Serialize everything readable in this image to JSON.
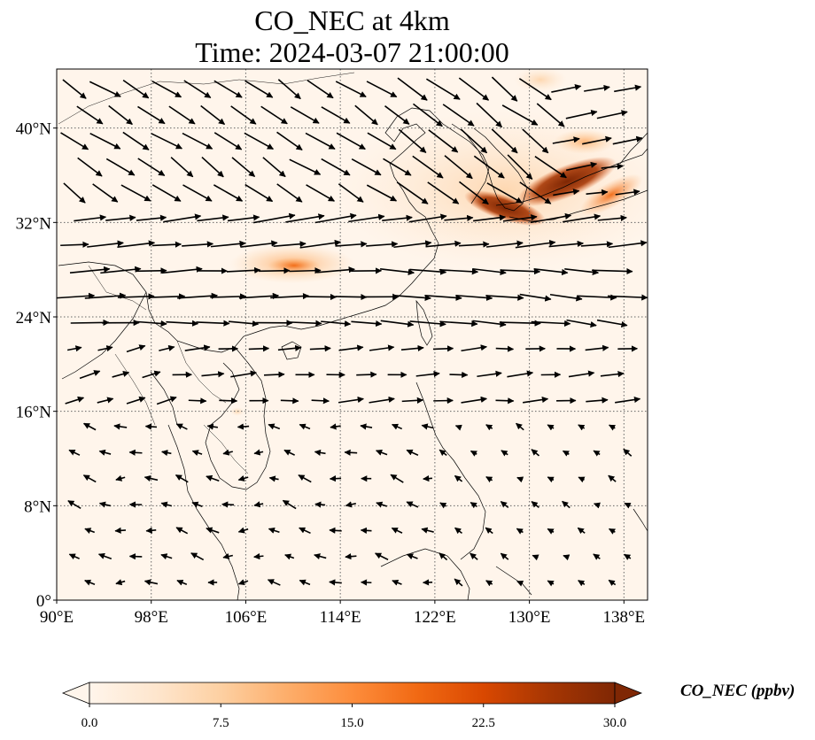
{
  "title": {
    "line1": "CO_NEC at 4km",
    "line2": "Time: 2024-03-07 21:00:00"
  },
  "map": {
    "lon_range": [
      90,
      140
    ],
    "lat_range": [
      0,
      45
    ],
    "lon_ticks": [
      {
        "value": 90,
        "label": "90°E"
      },
      {
        "value": 98,
        "label": "98°E"
      },
      {
        "value": 106,
        "label": "106°E"
      },
      {
        "value": 114,
        "label": "114°E"
      },
      {
        "value": 122,
        "label": "122°E"
      },
      {
        "value": 130,
        "label": "130°E"
      },
      {
        "value": 138,
        "label": "138°E"
      }
    ],
    "lat_ticks": [
      {
        "value": 0,
        "label": "0°"
      },
      {
        "value": 8,
        "label": "8°N"
      },
      {
        "value": 16,
        "label": "16°N"
      },
      {
        "value": 24,
        "label": "24°N"
      },
      {
        "value": 32,
        "label": "32°N"
      },
      {
        "value": 40,
        "label": "40°N"
      }
    ],
    "grid": true,
    "colors": {
      "background": "#fff5eb",
      "coastline": "#000000",
      "gridline": "#666666"
    }
  },
  "colorbar": {
    "label": "CO_NEC (ppbv)",
    "min": 0,
    "max": 30,
    "ticks": [
      {
        "value": 0,
        "label": "0.0"
      },
      {
        "value": 7.5,
        "label": "7.5"
      },
      {
        "value": 15,
        "label": "15.0"
      },
      {
        "value": 22.5,
        "label": "22.5"
      },
      {
        "value": 30,
        "label": "30.0"
      }
    ],
    "colormap": [
      "#fff5eb",
      "#fee6ce",
      "#fdd0a2",
      "#fdae6b",
      "#fd8d3c",
      "#f16913",
      "#d94801",
      "#a63603",
      "#7f2704"
    ],
    "extend": "both"
  },
  "plumes": [
    {
      "lon": 110,
      "lat": 28.5,
      "value": 14
    },
    {
      "lon": 133,
      "lat": 35.5,
      "value": 29
    },
    {
      "lon": 128,
      "lat": 33.5,
      "value": 27
    },
    {
      "lon": 136,
      "lat": 34,
      "value": 24
    },
    {
      "lon": 131,
      "lat": 38,
      "value": 10
    }
  ]
}
